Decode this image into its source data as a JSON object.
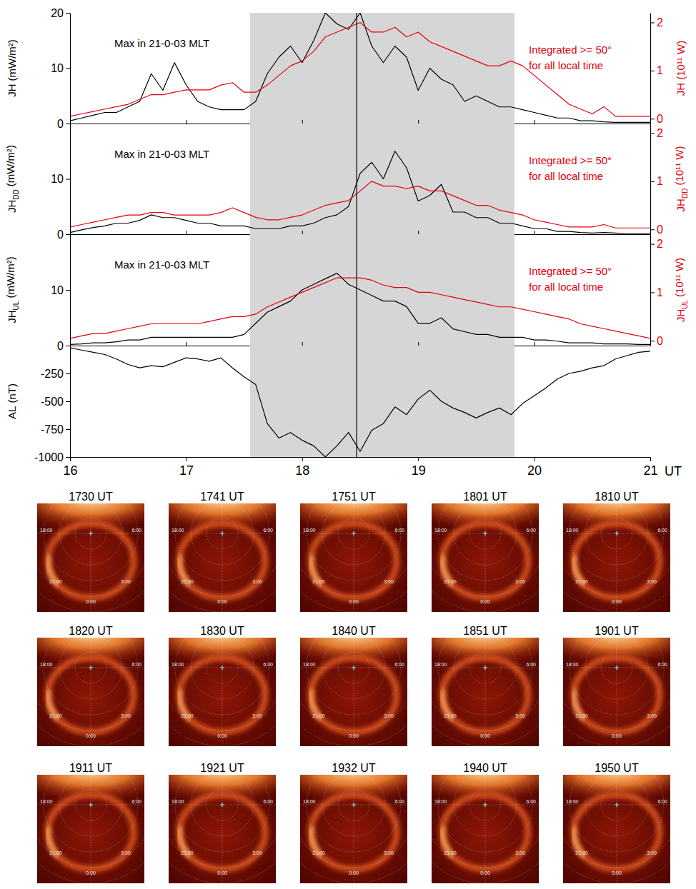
{
  "chart_data": [
    {
      "type": "line",
      "ylabel": {
        "main": "JH",
        "unit": "(mW/m²)"
      },
      "y2label": {
        "main": "JH",
        "unit": "(10¹¹ W)"
      },
      "annotations": [
        {
          "text": [
            "Max in 21-0-03 MLT"
          ],
          "color": "#000000"
        },
        {
          "text": [
            "Integrated >= 50°",
            "for all local time"
          ],
          "color": "#e3000f"
        }
      ],
      "x": [
        16,
        16.1,
        16.2,
        16.3,
        16.4,
        16.5,
        16.6,
        16.7,
        16.8,
        16.9,
        17,
        17.1,
        17.2,
        17.3,
        17.4,
        17.5,
        17.6,
        17.7,
        17.8,
        17.9,
        18,
        18.1,
        18.2,
        18.3,
        18.4,
        18.5,
        18.6,
        18.7,
        18.8,
        18.9,
        19,
        19.1,
        19.2,
        19.3,
        19.4,
        19.5,
        19.6,
        19.7,
        19.8,
        19.9,
        20,
        20.1,
        20.2,
        20.3,
        20.4,
        20.5,
        20.6,
        20.7,
        20.8,
        20.9,
        21
      ],
      "series": [
        {
          "color": "#000000",
          "values": [
            0.5,
            1,
            1.5,
            2,
            2,
            3,
            4,
            9,
            6,
            11,
            7,
            4,
            3,
            2.5,
            2.5,
            2.5,
            4,
            9,
            12,
            14,
            11,
            15,
            20,
            18,
            17,
            20,
            14,
            11,
            14,
            12,
            6,
            10,
            8,
            7,
            4,
            5,
            4,
            3,
            3,
            2.5,
            2,
            1.5,
            1,
            1,
            0.5,
            0.5,
            0.3,
            0.2,
            0.2,
            0.2,
            0.2
          ]
        },
        {
          "color": "#e3000f",
          "axis": "y2",
          "values": [
            0.05,
            0.1,
            0.15,
            0.2,
            0.25,
            0.3,
            0.4,
            0.5,
            0.5,
            0.55,
            0.6,
            0.6,
            0.6,
            0.7,
            0.75,
            0.55,
            0.55,
            0.7,
            0.9,
            1.1,
            1.2,
            1.4,
            1.7,
            1.8,
            1.9,
            2,
            1.8,
            1.8,
            1.9,
            1.7,
            1.8,
            1.6,
            1.5,
            1.4,
            1.3,
            1.2,
            1.1,
            1.1,
            1.2,
            1.1,
            0.9,
            0.7,
            0.5,
            0.3,
            0.2,
            0.1,
            0.25,
            0.05,
            0.05,
            0.05,
            0.05
          ]
        }
      ],
      "xlim": [
        16,
        21
      ],
      "xticks": [
        16,
        17,
        18,
        19,
        20,
        21
      ],
      "ylim": [
        0,
        20
      ],
      "yticks": [
        0,
        10,
        20
      ],
      "y2lim": [
        -0.1,
        2.2
      ],
      "y2ticks": [
        0,
        1,
        2
      ],
      "shaded_x": [
        17.55,
        19.83
      ],
      "vline_x": 18.47,
      "tick_labels": "y"
    },
    {
      "type": "line",
      "ylabel": {
        "main": "JH",
        "sub": "DD",
        "unit": "(mW/m²)"
      },
      "y2label": {
        "main": "JH",
        "sub": "DD",
        "unit": "(10¹¹ W)"
      },
      "annotations": [
        {
          "text": [
            "Max in 21-0-03 MLT"
          ],
          "color": "#000000"
        },
        {
          "text": [
            "Integrated >= 50°",
            "for all local time"
          ],
          "color": "#e3000f"
        }
      ],
      "x": [
        16,
        16.1,
        16.2,
        16.3,
        16.4,
        16.5,
        16.6,
        16.7,
        16.8,
        16.9,
        17,
        17.1,
        17.2,
        17.3,
        17.4,
        17.5,
        17.6,
        17.7,
        17.8,
        17.9,
        18,
        18.1,
        18.2,
        18.3,
        18.4,
        18.5,
        18.6,
        18.7,
        18.8,
        18.9,
        19,
        19.1,
        19.2,
        19.3,
        19.4,
        19.5,
        19.6,
        19.7,
        19.8,
        19.9,
        20,
        20.1,
        20.2,
        20.3,
        20.4,
        20.5,
        20.6,
        20.7,
        20.8,
        20.9,
        21
      ],
      "series": [
        {
          "color": "#000000",
          "values": [
            0.3,
            0.8,
            1.2,
            1.5,
            2,
            2,
            2.5,
            3.5,
            3,
            3,
            2.5,
            2,
            2,
            1.5,
            1.5,
            1.5,
            1,
            1,
            1,
            1.5,
            1.5,
            2,
            3,
            3.5,
            5,
            11,
            13,
            10,
            15,
            12,
            6,
            7,
            9,
            4,
            4,
            3,
            3,
            2,
            2,
            1.5,
            1,
            1,
            0.5,
            0.5,
            0.3,
            0.2,
            0.3,
            0.2,
            0.1,
            0.1,
            0.1
          ]
        },
        {
          "color": "#e3000f",
          "axis": "y2",
          "values": [
            0.05,
            0.1,
            0.15,
            0.2,
            0.25,
            0.3,
            0.3,
            0.35,
            0.35,
            0.3,
            0.3,
            0.3,
            0.3,
            0.35,
            0.45,
            0.35,
            0.25,
            0.2,
            0.2,
            0.25,
            0.3,
            0.4,
            0.5,
            0.55,
            0.6,
            0.8,
            1,
            0.9,
            0.9,
            0.85,
            0.9,
            0.8,
            0.8,
            0.7,
            0.6,
            0.5,
            0.5,
            0.4,
            0.35,
            0.3,
            0.2,
            0.15,
            0.1,
            0.05,
            0.05,
            0.05,
            0.1,
            0.03,
            0.03,
            0.03,
            0.03
          ]
        }
      ],
      "xlim": [
        16,
        21
      ],
      "xticks": [
        16,
        17,
        18,
        19,
        20,
        21
      ],
      "ylim": [
        0,
        20
      ],
      "yticks": [
        0,
        10
      ],
      "y2lim": [
        -0.1,
        2.2
      ],
      "y2ticks": [
        0,
        1,
        2
      ],
      "shaded_x": [
        17.55,
        19.83
      ],
      "vline_x": 18.47,
      "tick_labels": "y"
    },
    {
      "type": "line",
      "ylabel": {
        "main": "JH",
        "sub": "UL",
        "unit": "(mW/m²)"
      },
      "y2label": {
        "main": "JH",
        "sub": "UL",
        "unit": "(10¹¹ W)"
      },
      "annotations": [
        {
          "text": [
            "Max in 21-0-03 MLT"
          ],
          "color": "#000000"
        },
        {
          "text": [
            "Integrated >= 50°",
            "for all local time"
          ],
          "color": "#e3000f"
        }
      ],
      "x": [
        16,
        16.1,
        16.2,
        16.3,
        16.4,
        16.5,
        16.6,
        16.7,
        16.8,
        16.9,
        17,
        17.1,
        17.2,
        17.3,
        17.4,
        17.5,
        17.6,
        17.7,
        17.8,
        17.9,
        18,
        18.1,
        18.2,
        18.3,
        18.4,
        18.5,
        18.6,
        18.7,
        18.8,
        18.9,
        19,
        19.1,
        19.2,
        19.3,
        19.4,
        19.5,
        19.6,
        19.7,
        19.8,
        19.9,
        20,
        20.1,
        20.2,
        20.3,
        20.4,
        20.5,
        20.6,
        20.7,
        20.8,
        20.9,
        21
      ],
      "series": [
        {
          "color": "#000000",
          "values": [
            0.2,
            0.3,
            0.5,
            0.5,
            0.7,
            1,
            1,
            1.5,
            1.5,
            1.5,
            1.5,
            1.5,
            1.5,
            1.5,
            1.5,
            2,
            4,
            6,
            7,
            8,
            10,
            11,
            12,
            13,
            11,
            10,
            9,
            8,
            8,
            7,
            4,
            4,
            5,
            3,
            2.5,
            2,
            2,
            1.5,
            1.5,
            1.5,
            1,
            1,
            0.8,
            0.5,
            0.5,
            0.5,
            0.3,
            0.3,
            0.3,
            0.2,
            0.2
          ]
        },
        {
          "color": "#e3000f",
          "axis": "y2",
          "values": [
            0.05,
            0.1,
            0.15,
            0.15,
            0.2,
            0.25,
            0.3,
            0.35,
            0.35,
            0.35,
            0.35,
            0.35,
            0.4,
            0.45,
            0.5,
            0.5,
            0.55,
            0.7,
            0.8,
            0.9,
            1,
            1.1,
            1.2,
            1.3,
            1.3,
            1.3,
            1.25,
            1.15,
            1.1,
            1.1,
            1,
            1,
            0.95,
            0.9,
            0.85,
            0.8,
            0.75,
            0.7,
            0.7,
            0.65,
            0.6,
            0.55,
            0.5,
            0.45,
            0.35,
            0.3,
            0.25,
            0.2,
            0.15,
            0.1,
            0.05
          ]
        }
      ],
      "xlim": [
        16,
        21
      ],
      "xticks": [
        16,
        17,
        18,
        19,
        20,
        21
      ],
      "ylim": [
        0,
        20
      ],
      "yticks": [
        0,
        10
      ],
      "y2lim": [
        -0.1,
        2.2
      ],
      "y2ticks": [
        0,
        1,
        2
      ],
      "shaded_x": [
        17.55,
        19.83
      ],
      "vline_x": 18.47,
      "tick_labels": "y"
    },
    {
      "type": "line",
      "ylabel": {
        "main": "AL",
        "unit": "(nT)"
      },
      "xlabel": "UT",
      "x": [
        16,
        16.1,
        16.2,
        16.3,
        16.4,
        16.5,
        16.6,
        16.7,
        16.8,
        16.9,
        17,
        17.1,
        17.2,
        17.3,
        17.4,
        17.5,
        17.6,
        17.7,
        17.8,
        17.9,
        18,
        18.1,
        18.2,
        18.3,
        18.4,
        18.5,
        18.6,
        18.7,
        18.8,
        18.9,
        19,
        19.1,
        19.2,
        19.3,
        19.4,
        19.5,
        19.6,
        19.7,
        19.8,
        19.9,
        20,
        20.1,
        20.2,
        20.3,
        20.4,
        20.5,
        20.6,
        20.7,
        20.8,
        20.9,
        21
      ],
      "series": [
        {
          "color": "#000000",
          "values": [
            -20,
            -40,
            -60,
            -80,
            -120,
            -170,
            -200,
            -180,
            -190,
            -150,
            -110,
            -120,
            -140,
            -110,
            -200,
            -280,
            -350,
            -700,
            -830,
            -780,
            -850,
            -900,
            -1000,
            -900,
            -780,
            -950,
            -760,
            -700,
            -550,
            -620,
            -480,
            -400,
            -500,
            -560,
            -600,
            -650,
            -600,
            -560,
            -620,
            -520,
            -450,
            -380,
            -300,
            -250,
            -230,
            -200,
            -180,
            -120,
            -90,
            -60,
            -50
          ]
        }
      ],
      "xlim": [
        16,
        21
      ],
      "xticks": [
        16,
        17,
        18,
        19,
        20,
        21
      ],
      "ylim": [
        -1000,
        0
      ],
      "yticks": [
        -1000,
        -750,
        -500,
        -250
      ],
      "shaded_x": [
        17.55,
        19.83
      ],
      "vline_x": 18.47
    }
  ],
  "images": {
    "times": [
      "1730 UT",
      "1741 UT",
      "1751 UT",
      "1801 UT",
      "1810 UT",
      "1820 UT",
      "1830 UT",
      "1840 UT",
      "1851 UT",
      "1901 UT",
      "1911 UT",
      "1921 UT",
      "1932 UT",
      "1940 UT",
      "1950 UT"
    ],
    "mlt_labels": [
      "18:00",
      "21:00",
      "0:00",
      "3:00",
      "6:00"
    ]
  }
}
